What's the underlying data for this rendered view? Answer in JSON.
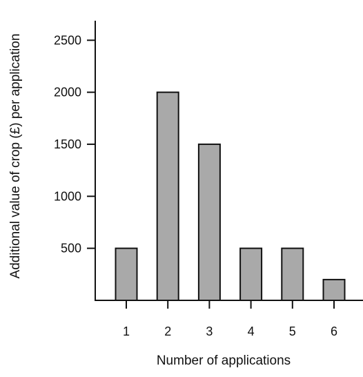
{
  "chart_data": {
    "type": "bar",
    "title": "",
    "xlabel": "Number of applications",
    "ylabel": "Additional value of crop (£) per application",
    "categories": [
      "1",
      "2",
      "3",
      "4",
      "5",
      "6"
    ],
    "values": [
      500,
      2000,
      1500,
      500,
      500,
      200
    ],
    "ylim": [
      0,
      2700
    ],
    "yticks": [
      500,
      1000,
      1500,
      2000,
      2500
    ],
    "yticklabels": [
      "500",
      "1000",
      "1500",
      "2000",
      "2500"
    ],
    "grid": false,
    "legend": "none",
    "bar_color": "#a9a9a9",
    "bar_edge_color": "#111111"
  }
}
